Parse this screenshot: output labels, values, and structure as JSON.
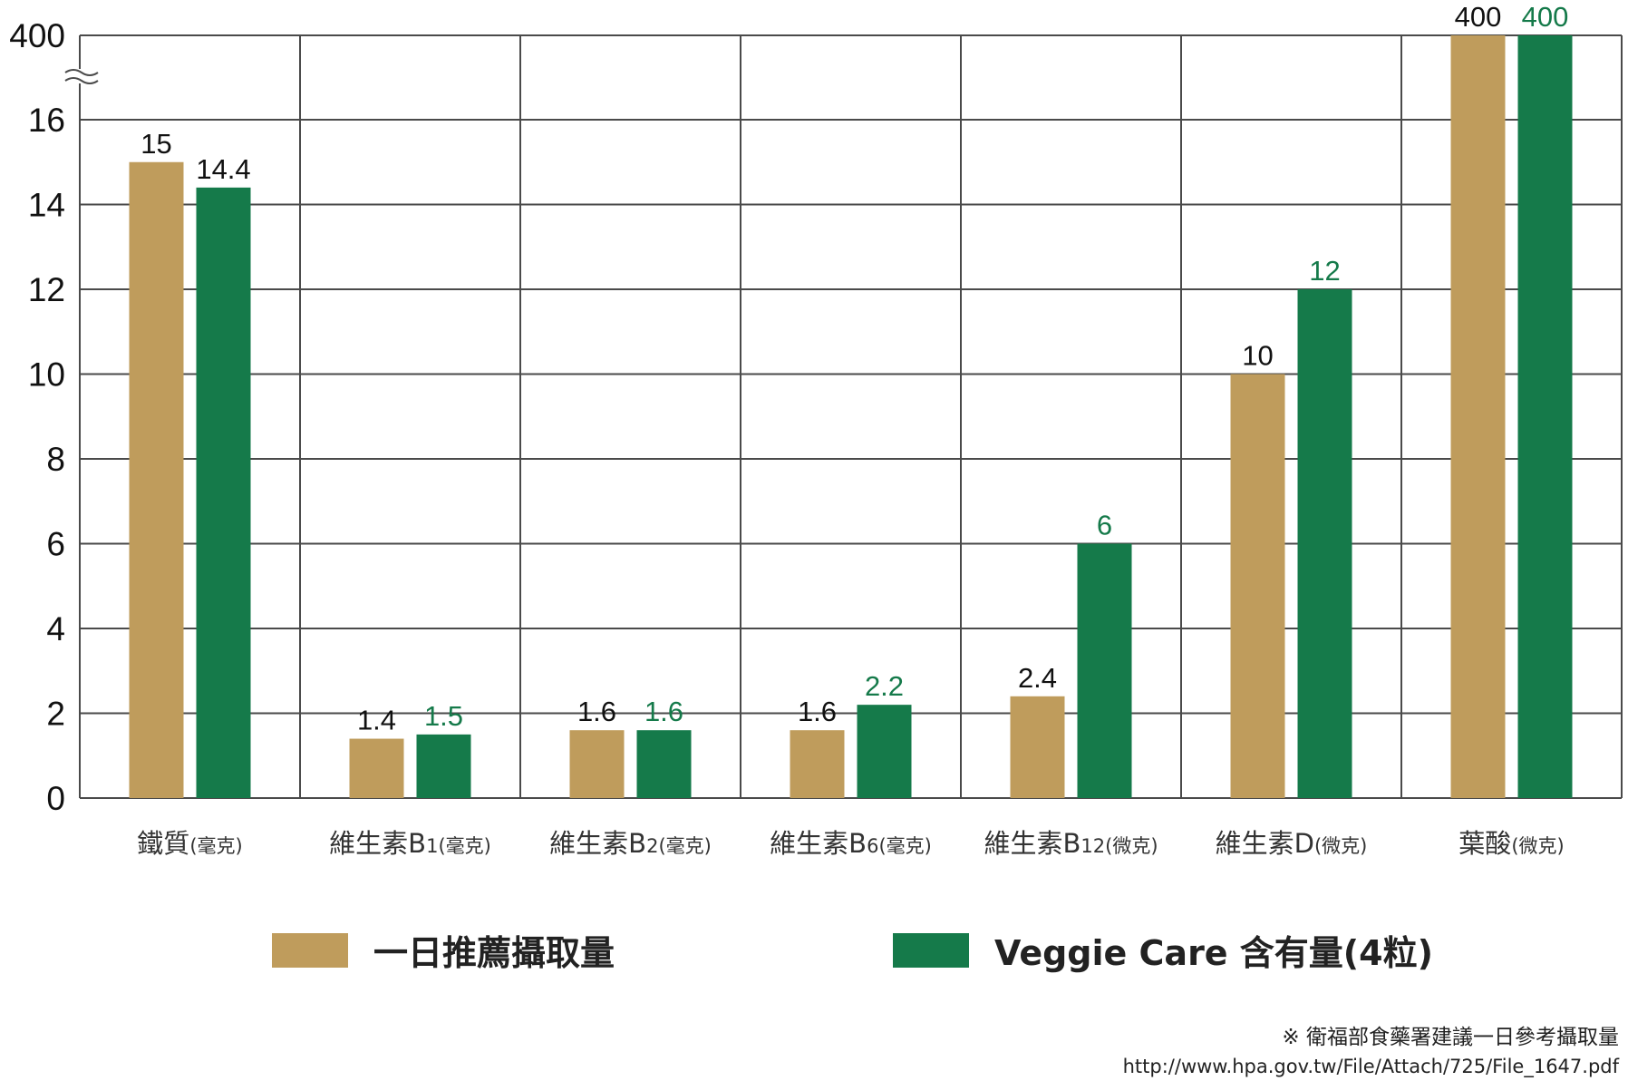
{
  "chart_data": {
    "type": "bar",
    "categories": [
      {
        "name": "鐵質",
        "unit": "(毫克)"
      },
      {
        "name": "維生素B",
        "sub": "1",
        "unit": "(毫克)"
      },
      {
        "name": "維生素B",
        "sub": "2",
        "unit": "(毫克)"
      },
      {
        "name": "維生素B",
        "sub": "6",
        "unit": "(毫克)"
      },
      {
        "name": "維生素B",
        "sub": "12",
        "unit": "(微克)"
      },
      {
        "name": "維生素D",
        "unit": "(微克)"
      },
      {
        "name": "葉酸",
        "unit": "(微克)"
      }
    ],
    "series": [
      {
        "name": "一日推薦攝取量",
        "color": "#BF9C5C",
        "label_color": "#111111",
        "values": [
          15,
          1.4,
          1.6,
          1.6,
          2.4,
          10,
          400
        ],
        "labels": [
          "15",
          "1.4",
          "1.6",
          "1.6",
          "2.4",
          "10",
          "400"
        ]
      },
      {
        "name": "Veggie Care 含有量(4粒)",
        "color": "#157A4A",
        "label_color": "#157A4A",
        "values": [
          14.4,
          1.5,
          1.6,
          2.2,
          6,
          12,
          400
        ],
        "labels": [
          "14.4",
          "1.5",
          "1.6",
          "2.2",
          "6",
          "12",
          "400"
        ],
        "label_colors": [
          "#111111",
          "#157A4A",
          "#157A4A",
          "#157A4A",
          "#157A4A",
          "#157A4A",
          "#157A4A"
        ]
      }
    ],
    "yticks": [
      "0",
      "2",
      "4",
      "6",
      "8",
      "10",
      "12",
      "14",
      "16",
      "400"
    ],
    "ylim": [
      0,
      18
    ],
    "axis_break": {
      "lower_max": 16,
      "upper_value": 400
    },
    "grid": true,
    "legend_position": "bottom"
  },
  "footnotes": {
    "source": "※ 衛福部食藥署建議一日參考攝取量",
    "url": "http://www.hpa.gov.tw/File/Attach/725/File_1647.pdf"
  }
}
